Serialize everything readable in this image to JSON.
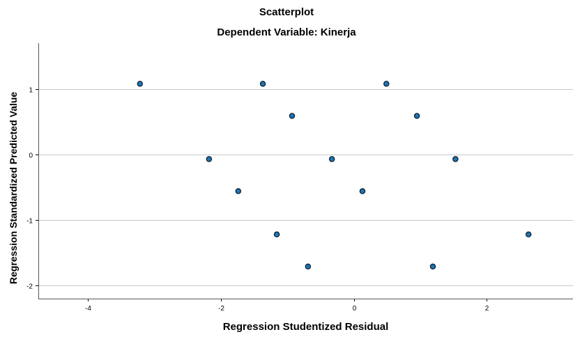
{
  "chart_data": {
    "type": "scatter",
    "title": "Scatterplot",
    "subtitle": "Dependent Variable: Kinerja",
    "xlabel": "Regression Studentized Residual",
    "ylabel": "Regression Standardized Predicted Value",
    "xlim": [
      -4.75,
      3.3
    ],
    "ylim": [
      -2.2,
      1.7
    ],
    "xticks": [
      -4,
      -2,
      0,
      2
    ],
    "yticks": [
      -2,
      -1,
      0,
      1
    ],
    "xtick_labels": [
      "-4",
      "-2",
      "0",
      "2"
    ],
    "ytick_labels": [
      "-2",
      "-1",
      "0",
      "1"
    ],
    "grid": "horizontal",
    "point_color": "#1f77b4",
    "x": [
      -3.22,
      -1.37,
      0.49,
      -0.93,
      0.95,
      -2.18,
      -0.33,
      1.53,
      -1.74,
      0.13,
      -1.16,
      2.63,
      -0.69,
      1.19
    ],
    "y": [
      1.08,
      1.08,
      1.08,
      0.59,
      0.59,
      -0.07,
      -0.07,
      -0.07,
      -0.56,
      -0.56,
      -1.22,
      -1.22,
      -1.71,
      -1.71
    ]
  }
}
